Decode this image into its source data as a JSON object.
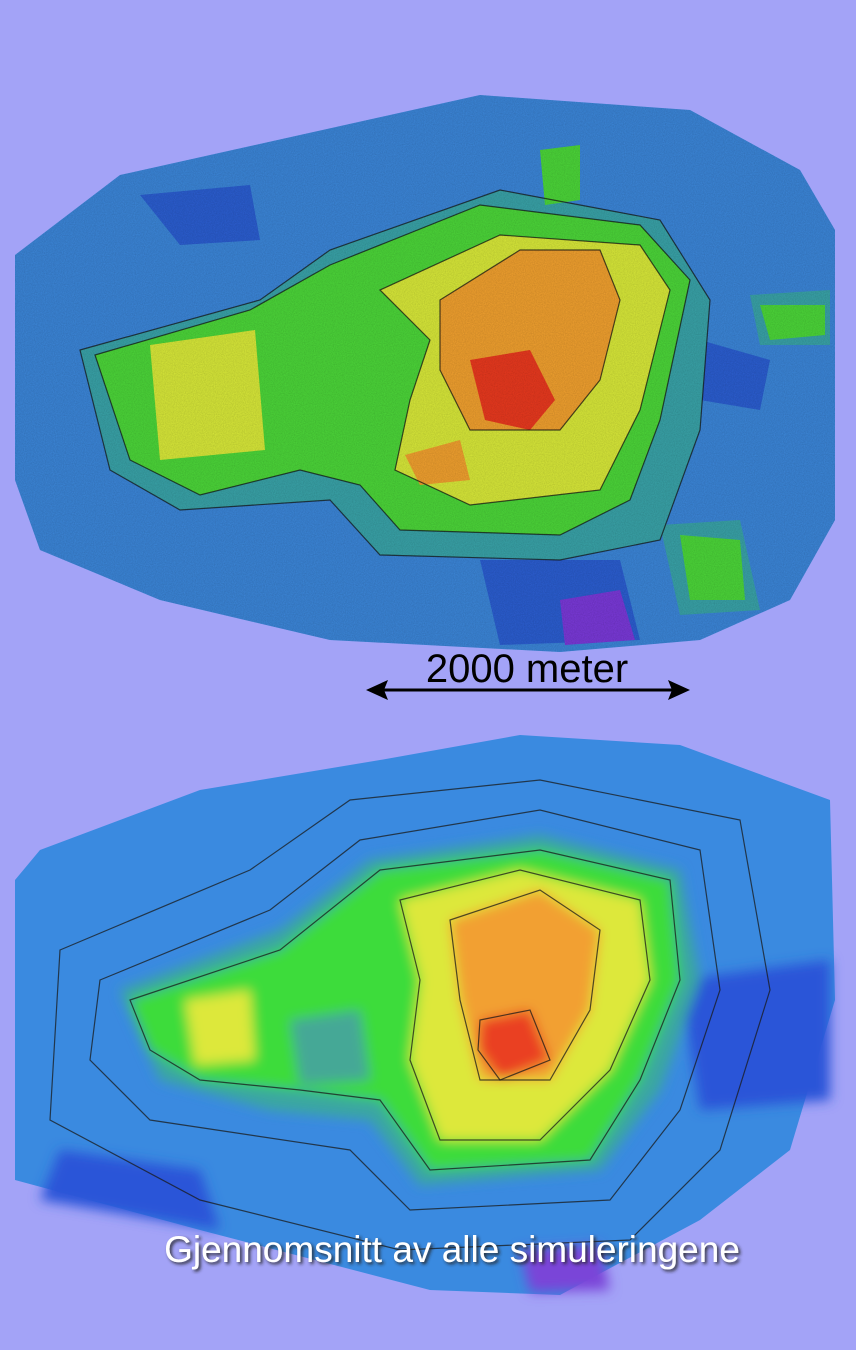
{
  "scale_bar": {
    "label": "2000 meter"
  },
  "caption": "Gjennomsnitt av alle simuleringene"
}
